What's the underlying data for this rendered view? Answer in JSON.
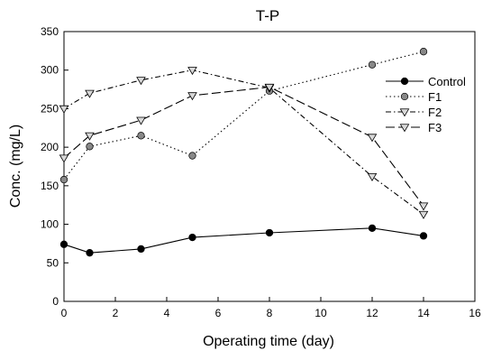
{
  "chart_data": {
    "type": "line",
    "title": "T-P",
    "xlabel": "Operating time (day)",
    "ylabel": "Conc. (mg/L)",
    "xlim": [
      0,
      16
    ],
    "ylim": [
      0,
      350
    ],
    "xticks": [
      0,
      2,
      4,
      6,
      8,
      10,
      12,
      14,
      16
    ],
    "yticks": [
      0,
      50,
      100,
      150,
      200,
      250,
      300,
      350
    ],
    "grid": false,
    "legend_position": "top-right",
    "x": [
      0,
      1,
      3,
      5,
      8,
      12,
      14
    ],
    "series": [
      {
        "name": "Control",
        "values": [
          74,
          63,
          68,
          83,
          89,
          95,
          85
        ],
        "line": "solid",
        "marker": "circle",
        "marker_color": "#000000"
      },
      {
        "name": "F1",
        "values": [
          158,
          201,
          215,
          189,
          273,
          307,
          324
        ],
        "line": "dotted",
        "marker": "circle",
        "marker_color": "#888888"
      },
      {
        "name": "F2",
        "values": [
          250,
          270,
          287,
          300,
          277,
          162,
          113
        ],
        "line": "dashdot",
        "marker": "triangle-down",
        "marker_color": "#d8d8d8"
      },
      {
        "name": "F3",
        "values": [
          186,
          215,
          235,
          267,
          278,
          213,
          124
        ],
        "line": "dashed",
        "marker": "triangle-down",
        "marker_color": "#d8d8d8"
      }
    ]
  }
}
